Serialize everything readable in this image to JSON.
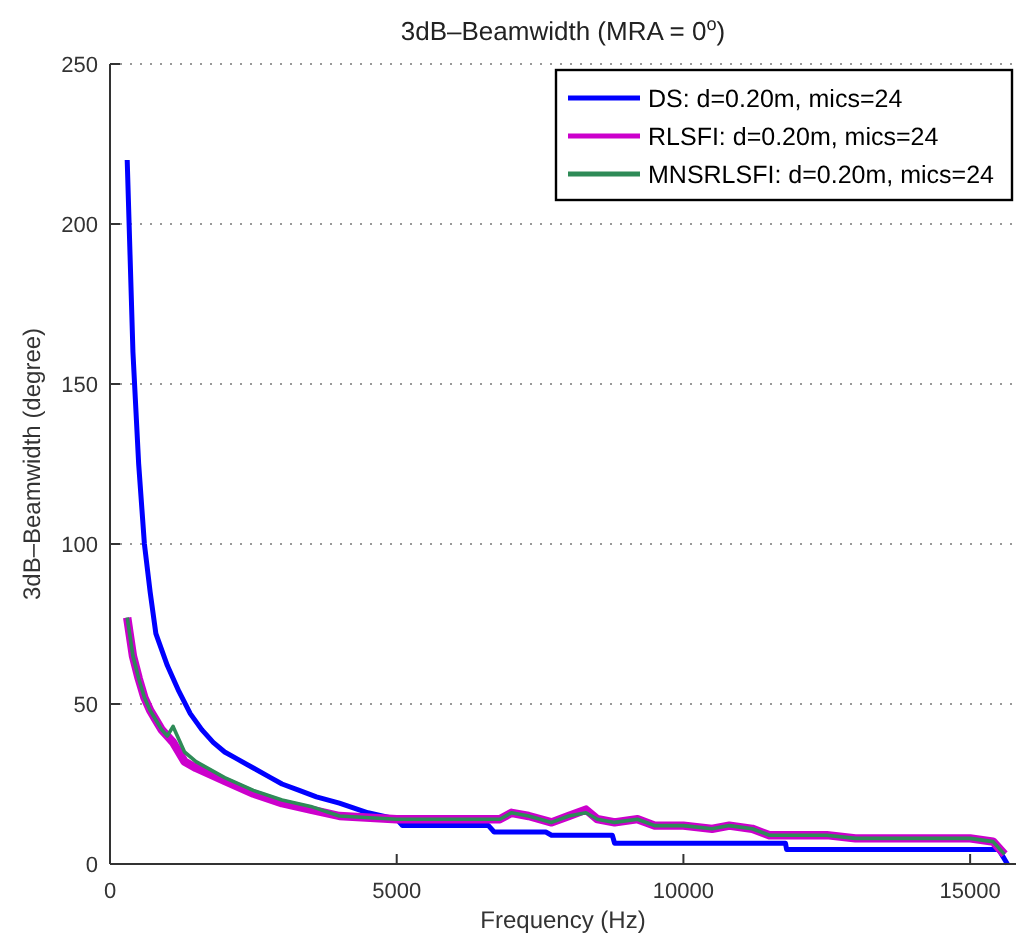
{
  "chart_data": {
    "type": "line",
    "title": "3dB–Beamwidth (MRA = 0$^{o}$)",
    "xlabel": "Frequency (Hz)",
    "ylabel": "3dB–Beamwidth (degree)",
    "xlim": [
      0,
      15800
    ],
    "ylim": [
      0,
      250
    ],
    "xticks": [
      0,
      5000,
      10000,
      15000
    ],
    "yticks": [
      0,
      50,
      100,
      150,
      200,
      250
    ],
    "grid": "y",
    "legend": "top right",
    "marker": "none",
    "line_style": "solid",
    "series": [
      {
        "name": "DS: d=0.20m, mics=24",
        "color": "#0000ff",
        "x": [
          300,
          400,
          500,
          600,
          700,
          800,
          1000,
          1200,
          1400,
          1600,
          1800,
          2000,
          2200,
          2500,
          2800,
          3000,
          3300,
          3600,
          4000,
          4500,
          5000,
          5100,
          6600,
          6700,
          7600,
          7700,
          8760,
          8800,
          11780,
          11800,
          15500,
          15650
        ],
        "values": [
          220,
          160,
          125,
          100,
          85,
          72,
          62,
          54,
          47,
          42,
          38,
          35,
          33,
          30,
          27,
          25,
          23,
          21,
          19,
          16,
          14,
          12,
          12,
          10,
          10,
          9,
          9,
          6.5,
          6.5,
          4.5,
          4.5,
          0
        ]
      },
      {
        "name": "RLSFI: d=0.20m, mics=24",
        "color": "#cc00cc",
        "x": [
          300,
          400,
          500,
          600,
          700,
          800,
          900,
          1000,
          1100,
          1300,
          1500,
          2000,
          2500,
          3000,
          3500,
          4000,
          5000,
          6000,
          6800,
          7000,
          7300,
          7700,
          8000,
          8300,
          8500,
          8800,
          9200,
          9500,
          10000,
          10500,
          10800,
          11200,
          11500,
          12000,
          12500,
          13000,
          15000,
          15400,
          15600
        ],
        "values": [
          77,
          65,
          58,
          52,
          48,
          45,
          42,
          40,
          38,
          32,
          30,
          26,
          22,
          19,
          17,
          15,
          14,
          14,
          14,
          16,
          15,
          13,
          15,
          17,
          14,
          13,
          14,
          12,
          12,
          11,
          12,
          11,
          9,
          9,
          9,
          8,
          8,
          7,
          3
        ]
      },
      {
        "name": "MNSRLSFI: d=0.20m, mics=24",
        "color": "#2e8b57",
        "x": [
          300,
          400,
          500,
          600,
          700,
          800,
          900,
          1000,
          1100,
          1300,
          1500,
          2000,
          2500,
          3000,
          3500,
          4000,
          5000,
          6000,
          6800,
          7000,
          7300,
          7700,
          8000,
          8300,
          8500,
          8800,
          9200,
          9500,
          10000,
          10500,
          10800,
          11200,
          11500,
          12000,
          12500,
          13000,
          15000,
          15400,
          15600
        ],
        "values": [
          77,
          65,
          58,
          52,
          48,
          45,
          42,
          40,
          43,
          35,
          32,
          27,
          23,
          20,
          18,
          15,
          14,
          14,
          14,
          16,
          15,
          13,
          15,
          16,
          14,
          13,
          14,
          12,
          12,
          11,
          12,
          11,
          9,
          9,
          9,
          8,
          8,
          7,
          3
        ]
      }
    ]
  }
}
